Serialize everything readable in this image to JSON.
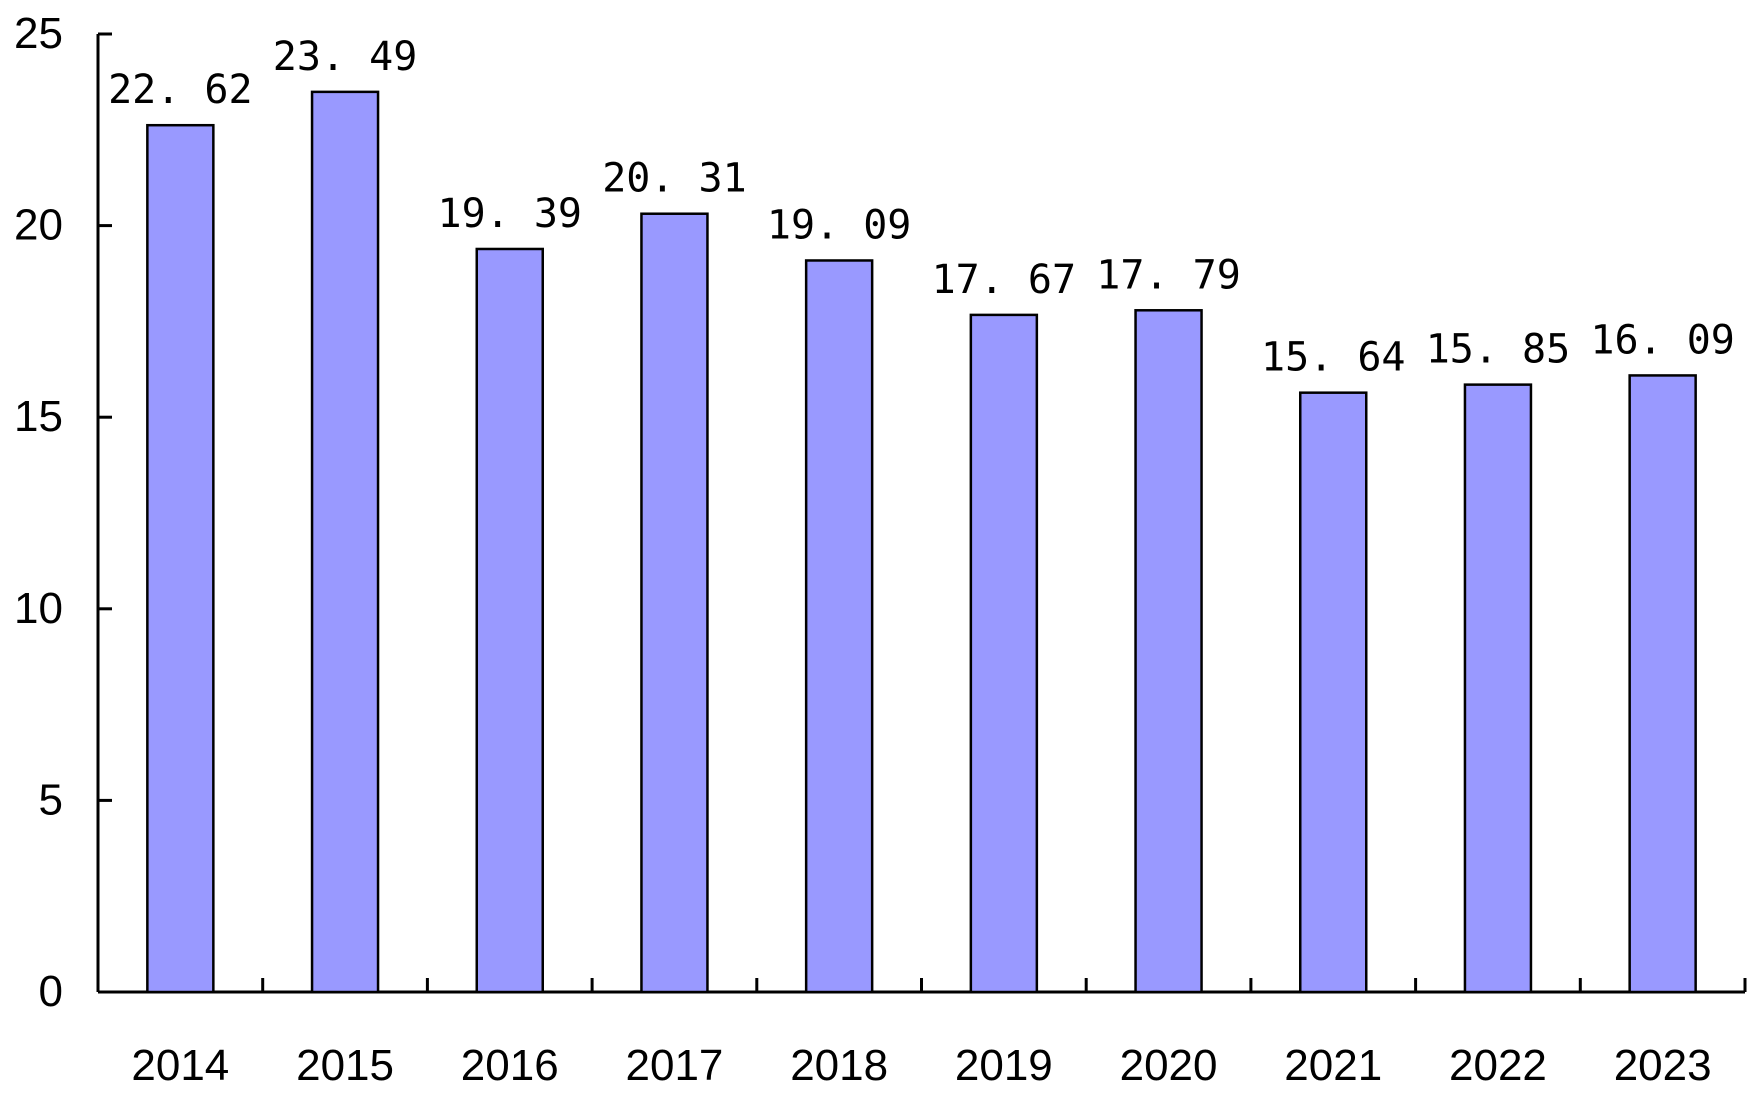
{
  "chart_data": {
    "type": "bar",
    "title": "",
    "xlabel": "",
    "ylabel": "",
    "categories": [
      "2014",
      "2015",
      "2016",
      "2017",
      "2018",
      "2019",
      "2020",
      "2021",
      "2022",
      "2023"
    ],
    "values": [
      22.62,
      23.49,
      19.39,
      20.31,
      19.09,
      17.67,
      17.79,
      15.64,
      15.85,
      16.09
    ],
    "value_labels": [
      "22. 62",
      "23. 49",
      "19. 39",
      "20. 31",
      "19. 09",
      "17. 67",
      "17. 79",
      "15. 64",
      "15. 85",
      "16. 09"
    ],
    "ylim": [
      0,
      25
    ],
    "yticks": [
      0,
      5,
      10,
      15,
      20,
      25
    ],
    "grid": false,
    "legend": "none",
    "bar_color": "#9999ff",
    "bar_edge_color": "#000000"
  }
}
